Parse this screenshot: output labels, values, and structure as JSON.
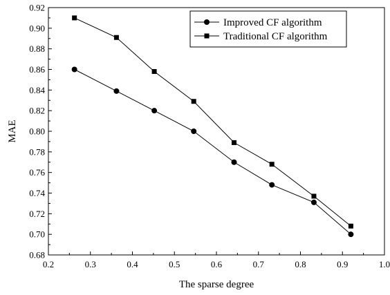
{
  "chart_data": {
    "type": "line",
    "xlabel": "The sparse degree",
    "ylabel": "MAE",
    "xlim": [
      0.2,
      1.0
    ],
    "ylim": [
      0.68,
      0.92
    ],
    "x_ticks": [
      0.2,
      0.3,
      0.4,
      0.5,
      0.6,
      0.7,
      0.8,
      0.9,
      1.0
    ],
    "x_tick_labels": [
      "0.2",
      "0.3",
      "0.4",
      "0.5",
      "0.6",
      "0.7",
      "0.8",
      "0.9",
      "1.0"
    ],
    "y_ticks": [
      0.68,
      0.7,
      0.72,
      0.74,
      0.76,
      0.78,
      0.8,
      0.82,
      0.84,
      0.86,
      0.88,
      0.9,
      0.92
    ],
    "y_tick_labels": [
      "0.68",
      "0.70",
      "0.72",
      "0.74",
      "0.76",
      "0.78",
      "0.80",
      "0.82",
      "0.84",
      "0.86",
      "0.88",
      "0.90",
      "0.92"
    ],
    "grid": false,
    "legend_position": "top-right",
    "x": [
      0.262,
      0.362,
      0.452,
      0.546,
      0.642,
      0.732,
      0.832,
      0.92
    ],
    "series": [
      {
        "name": "Improved CF algorithm",
        "marker": "circle",
        "color": "#000000",
        "values": [
          0.86,
          0.839,
          0.82,
          0.8,
          0.77,
          0.748,
          0.731,
          0.7
        ]
      },
      {
        "name": "Traditional CF algorithm",
        "marker": "square",
        "color": "#000000",
        "values": [
          0.91,
          0.891,
          0.858,
          0.829,
          0.789,
          0.768,
          0.737,
          0.708
        ]
      }
    ]
  }
}
